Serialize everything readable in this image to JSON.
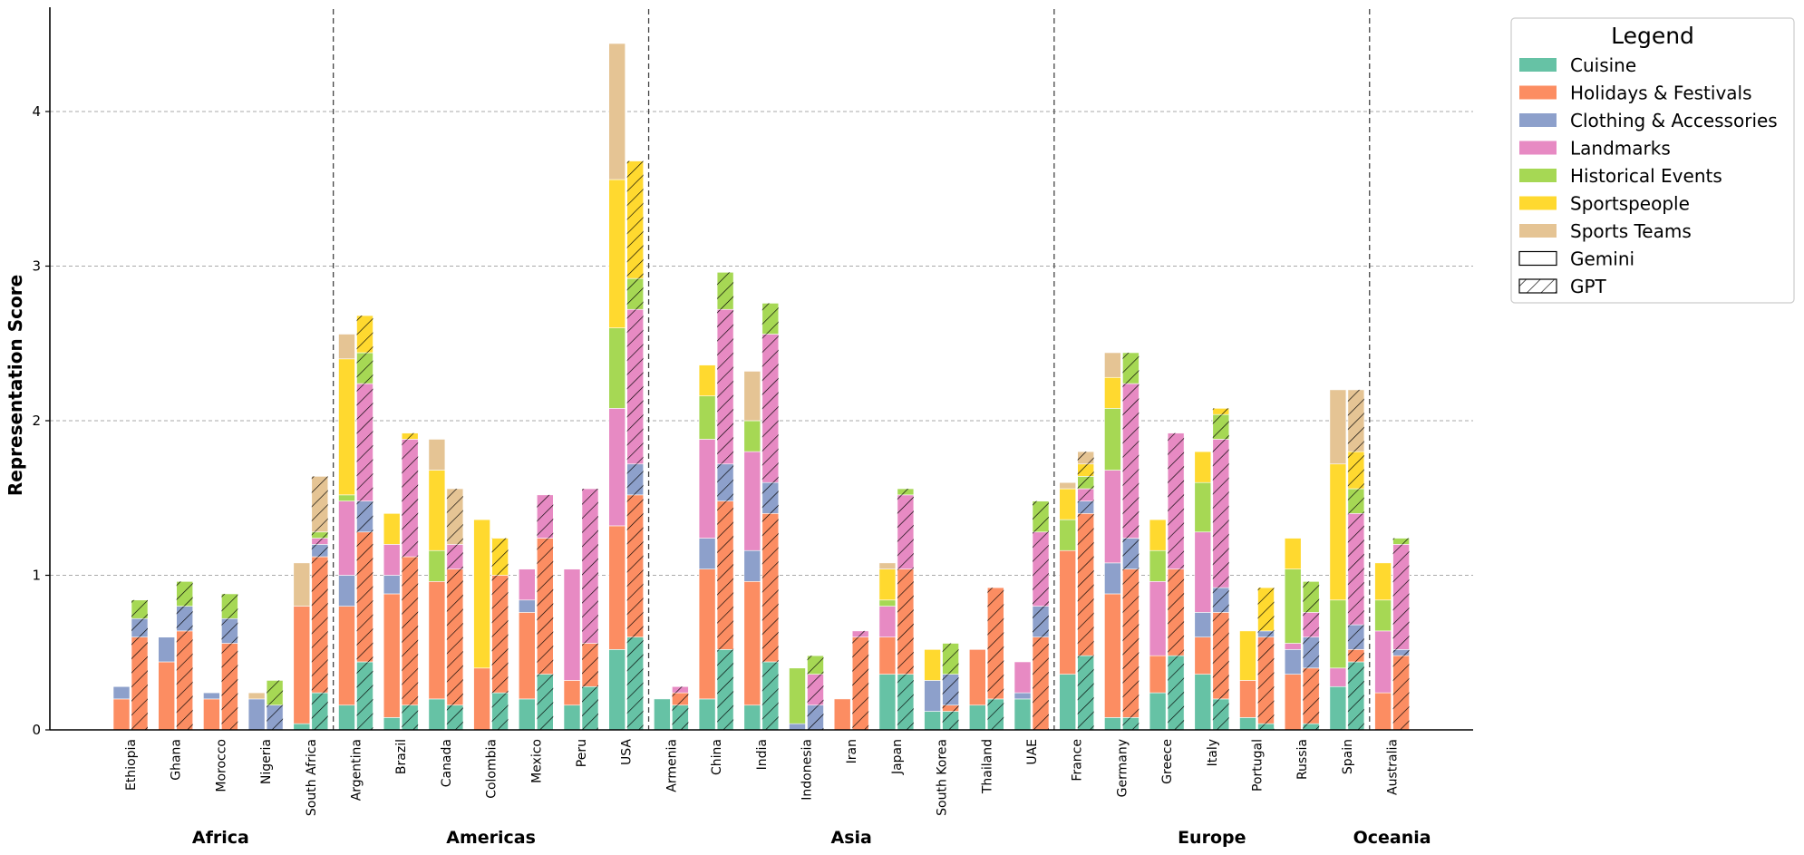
{
  "chart_data": {
    "type": "bar",
    "subtype": "stacked-grouped",
    "title": "",
    "xlabel": "",
    "ylabel": "Representation Score",
    "ylim": [
      0,
      4.7
    ],
    "yticks": [
      0,
      1,
      2,
      3,
      4
    ],
    "grid": "horizontal dashed",
    "legend_title": "Legend",
    "legend_position": "outside top-right",
    "categories_stack": [
      "Cuisine",
      "Holidays & Festivals",
      "Clothing & Accessories",
      "Landmarks",
      "Historical Events",
      "Sportspeople",
      "Sports Teams"
    ],
    "colors": [
      "#66c2a5",
      "#fc8d62",
      "#8da0cb",
      "#e78ac3",
      "#a6d854",
      "#ffd92f",
      "#e5c494"
    ],
    "models": [
      {
        "name": "Gemini",
        "pattern": "solid"
      },
      {
        "name": "GPT",
        "pattern": "hatched"
      }
    ],
    "regions": [
      {
        "name": "Africa",
        "countries": [
          {
            "name": "Ethiopia",
            "gemini": [
              0,
              0.2,
              0.08,
              0,
              0,
              0,
              0
            ],
            "gpt": [
              0,
              0.6,
              0.12,
              0,
              0.12,
              0,
              0
            ]
          },
          {
            "name": "Ghana",
            "gemini": [
              0,
              0.44,
              0.16,
              0,
              0,
              0,
              0
            ],
            "gpt": [
              0,
              0.64,
              0.16,
              0,
              0.16,
              0,
              0
            ]
          },
          {
            "name": "Morocco",
            "gemini": [
              0,
              0.2,
              0.04,
              0,
              0,
              0,
              0
            ],
            "gpt": [
              0,
              0.56,
              0.16,
              0,
              0.16,
              0,
              0
            ]
          },
          {
            "name": "Nigeria",
            "gemini": [
              0,
              0,
              0.2,
              0,
              0,
              0,
              0.04
            ],
            "gpt": [
              0,
              0,
              0.16,
              0,
              0.16,
              0,
              0
            ]
          },
          {
            "name": "South Africa",
            "gemini": [
              0.04,
              0.76,
              0,
              0,
              0,
              0,
              0.28
            ],
            "gpt": [
              0.24,
              0.88,
              0.08,
              0.04,
              0.04,
              0,
              0.36
            ]
          }
        ]
      },
      {
        "name": "Americas",
        "countries": [
          {
            "name": "Argentina",
            "gemini": [
              0.16,
              0.64,
              0.2,
              0.48,
              0.04,
              0.88,
              0.16
            ],
            "gpt": [
              0.44,
              0.84,
              0.2,
              0.76,
              0.2,
              0.24,
              0
            ]
          },
          {
            "name": "Brazil",
            "gemini": [
              0.08,
              0.8,
              0.12,
              0.2,
              0,
              0.2,
              0
            ],
            "gpt": [
              0.16,
              0.96,
              0,
              0.76,
              0,
              0.04,
              0
            ]
          },
          {
            "name": "Canada",
            "gemini": [
              0.2,
              0.76,
              0,
              0,
              0.2,
              0.52,
              0.2
            ],
            "gpt": [
              0.16,
              0.88,
              0,
              0.16,
              0,
              0,
              0.36
            ]
          },
          {
            "name": "Colombia",
            "gemini": [
              0,
              0.4,
              0,
              0,
              0,
              0.96,
              0
            ],
            "gpt": [
              0.24,
              0.76,
              0,
              0,
              0,
              0.24,
              0
            ]
          },
          {
            "name": "Mexico",
            "gemini": [
              0.2,
              0.56,
              0.08,
              0.2,
              0,
              0,
              0
            ],
            "gpt": [
              0.36,
              0.88,
              0,
              0.28,
              0,
              0,
              0
            ]
          },
          {
            "name": "Peru",
            "gemini": [
              0.16,
              0.16,
              0,
              0.72,
              0,
              0,
              0
            ],
            "gpt": [
              0.28,
              0.28,
              0,
              1.0,
              0,
              0,
              0
            ]
          },
          {
            "name": "USA",
            "gemini": [
              0.52,
              0.8,
              0,
              0.76,
              0.52,
              0.96,
              0.88
            ],
            "gpt": [
              0.6,
              0.92,
              0.2,
              1.0,
              0.2,
              0.76,
              0
            ]
          }
        ]
      },
      {
        "name": "Asia",
        "countries": [
          {
            "name": "Armenia",
            "gemini": [
              0.2,
              0,
              0,
              0,
              0,
              0,
              0
            ],
            "gpt": [
              0.16,
              0.08,
              0,
              0.04,
              0,
              0,
              0
            ]
          },
          {
            "name": "China",
            "gemini": [
              0.2,
              0.84,
              0.2,
              0.64,
              0.28,
              0.2,
              0
            ],
            "gpt": [
              0.52,
              0.96,
              0.24,
              1.0,
              0.24,
              0,
              0
            ]
          },
          {
            "name": "India",
            "gemini": [
              0.16,
              0.8,
              0.2,
              0.64,
              0.2,
              0,
              0.32
            ],
            "gpt": [
              0.44,
              0.96,
              0.2,
              0.96,
              0.2,
              0,
              0
            ]
          },
          {
            "name": "Indonesia",
            "gemini": [
              0,
              0,
              0.04,
              0,
              0.36,
              0,
              0
            ],
            "gpt": [
              0,
              0,
              0.16,
              0.2,
              0.12,
              0,
              0
            ]
          },
          {
            "name": "Iran",
            "gemini": [
              0,
              0.2,
              0,
              0,
              0,
              0,
              0
            ],
            "gpt": [
              0,
              0.6,
              0,
              0.04,
              0,
              0,
              0
            ]
          },
          {
            "name": "Japan",
            "gemini": [
              0.36,
              0.24,
              0,
              0.2,
              0.04,
              0.2,
              0.04
            ],
            "gpt": [
              0.36,
              0.68,
              0,
              0.48,
              0.04,
              0,
              0
            ]
          },
          {
            "name": "South Korea",
            "gemini": [
              0.12,
              0,
              0.2,
              0,
              0,
              0.2,
              0
            ],
            "gpt": [
              0.12,
              0.04,
              0.2,
              0,
              0.2,
              0,
              0
            ]
          },
          {
            "name": "Thailand",
            "gemini": [
              0.16,
              0.36,
              0,
              0,
              0,
              0,
              0
            ],
            "gpt": [
              0.2,
              0.72,
              0,
              0,
              0,
              0,
              0
            ]
          },
          {
            "name": "UAE",
            "gemini": [
              0.2,
              0,
              0.04,
              0.2,
              0,
              0,
              0
            ],
            "gpt": [
              0,
              0.6,
              0.2,
              0.48,
              0.2,
              0,
              0
            ]
          }
        ]
      },
      {
        "name": "Europe",
        "countries": [
          {
            "name": "France",
            "gemini": [
              0.36,
              0.8,
              0,
              0,
              0.2,
              0.2,
              0.04
            ],
            "gpt": [
              0.48,
              0.92,
              0.08,
              0.08,
              0.08,
              0.08,
              0.08
            ]
          },
          {
            "name": "Germany",
            "gemini": [
              0.08,
              0.8,
              0.2,
              0.6,
              0.4,
              0.2,
              0.16
            ],
            "gpt": [
              0.08,
              0.96,
              0.2,
              1.0,
              0.2,
              0,
              0
            ]
          },
          {
            "name": "Greece",
            "gemini": [
              0.24,
              0.24,
              0,
              0.48,
              0.2,
              0.2,
              0
            ],
            "gpt": [
              0.48,
              0.56,
              0,
              0.88,
              0,
              0,
              0
            ]
          },
          {
            "name": "Italy",
            "gemini": [
              0.36,
              0.24,
              0.16,
              0.52,
              0.32,
              0.2,
              0
            ],
            "gpt": [
              0.2,
              0.56,
              0.16,
              0.96,
              0.16,
              0.04,
              0
            ]
          },
          {
            "name": "Portugal",
            "gemini": [
              0.08,
              0.24,
              0,
              0,
              0,
              0.32,
              0
            ],
            "gpt": [
              0.04,
              0.56,
              0.04,
              0,
              0,
              0.28,
              0
            ]
          },
          {
            "name": "Russia",
            "gemini": [
              0,
              0.36,
              0.16,
              0.04,
              0.48,
              0.2,
              0
            ],
            "gpt": [
              0.04,
              0.36,
              0.2,
              0.16,
              0.2,
              0,
              0
            ]
          },
          {
            "name": "Spain",
            "gemini": [
              0.28,
              0,
              0,
              0.12,
              0.44,
              0.88,
              0.48
            ],
            "gpt": [
              0.44,
              0.08,
              0.16,
              0.72,
              0.16,
              0.24,
              0.4
            ]
          }
        ]
      },
      {
        "name": "Oceania",
        "countries": [
          {
            "name": "Australia",
            "gemini": [
              0,
              0.24,
              0,
              0.4,
              0.2,
              0.24,
              0
            ],
            "gpt": [
              0,
              0.48,
              0.04,
              0.68,
              0.04,
              0,
              0
            ]
          }
        ]
      }
    ]
  }
}
